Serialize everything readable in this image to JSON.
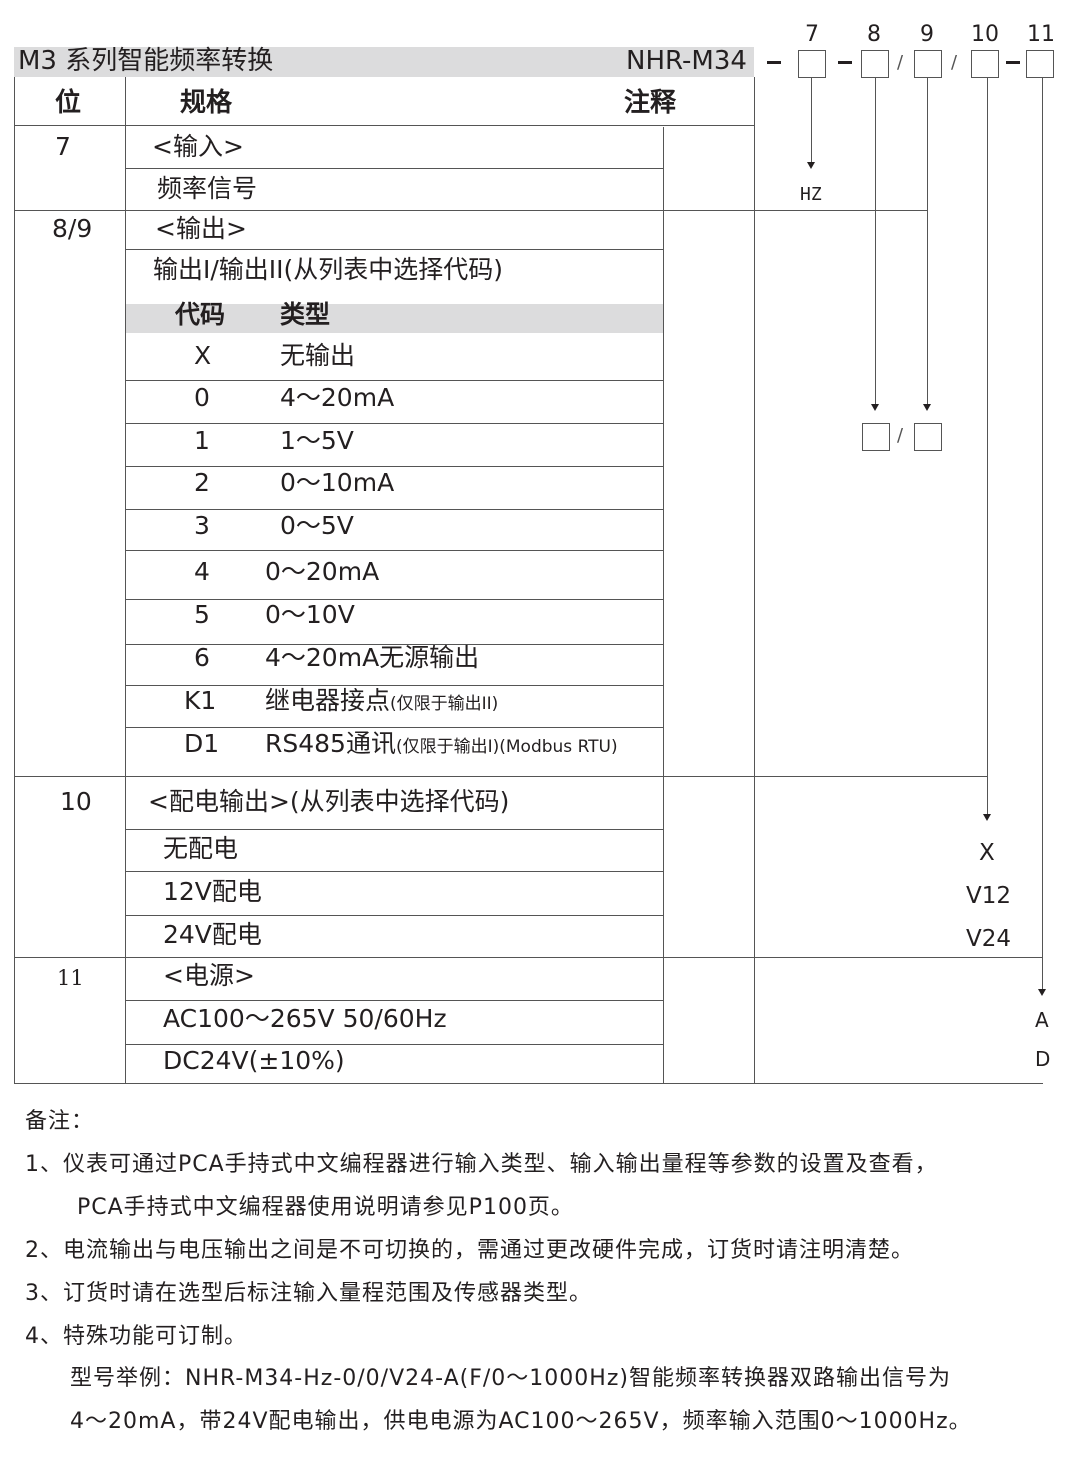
{
  "header": {
    "series_title": "M3 系列智能频率转换",
    "model": "NHR-M34"
  },
  "code_positions": {
    "p7": "7",
    "p8": "8",
    "p9": "9",
    "p10": "10",
    "p11": "11"
  },
  "columns": {
    "pos": "位",
    "spec": "规格",
    "note": "注释"
  },
  "row7": {
    "pos": "7",
    "title": "<输入>",
    "item": "频率信号",
    "code": "HZ"
  },
  "row89": {
    "pos": "8/9",
    "title": "<输出>",
    "subtitle": "输出I/输出II(从列表中选择代码)",
    "col_code": "代码",
    "col_type": "类型",
    "items": [
      {
        "code": "X",
        "type": "无输出"
      },
      {
        "code": "0",
        "type": "4～20mA"
      },
      {
        "code": "1",
        "type": "1～5V"
      },
      {
        "code": "2",
        "type": "0～10mA"
      },
      {
        "code": "3",
        "type": "0～5V"
      },
      {
        "code": "4",
        "type": "0～20mA"
      },
      {
        "code": "5",
        "type": "0～10V"
      },
      {
        "code": "6",
        "type": "4～20mA无源输出"
      },
      {
        "code": "K1",
        "type": "继电器接点",
        "note": "(仅限于输出II)"
      },
      {
        "code": "D1",
        "type": "RS485通讯",
        "note": "(仅限于输出I)(Modbus RTU)"
      }
    ]
  },
  "row10": {
    "pos": "10",
    "title": "<配电输出>(从列表中选择代码)",
    "items": [
      "无配电",
      "12V配电",
      "24V配电"
    ],
    "codes": [
      "X",
      "V12",
      "V24"
    ]
  },
  "row11": {
    "pos": "11",
    "title": "<电源>",
    "items": [
      "AC100～265V  50/60Hz",
      "DC24V(±10%)"
    ],
    "codes": [
      "A",
      "D"
    ]
  },
  "notes": {
    "heading": "备注：",
    "n1a": "1、仪表可通过PCA手持式中文编程器进行输入类型、输入输出量程等参数的设置及查看，",
    "n1b": "PCA手持式中文编程器使用说明请参见P100页。",
    "n2": "2、电流输出与电压输出之间是不可切换的，需通过更改硬件完成，订货时请注明清楚。",
    "n3": "3、订货时请在选型后标注输入量程范围及传感器类型。",
    "n4": "4、特殊功能可订制。",
    "ex1": "型号举例：NHR-M34-Hz-0/0/V24-A(F/0～1000Hz)智能频率转换器双路输出信号为",
    "ex2": "4～20mA，带24V配电输出，供电电源为AC100～265V，频率输入范围0～1000Hz。"
  }
}
